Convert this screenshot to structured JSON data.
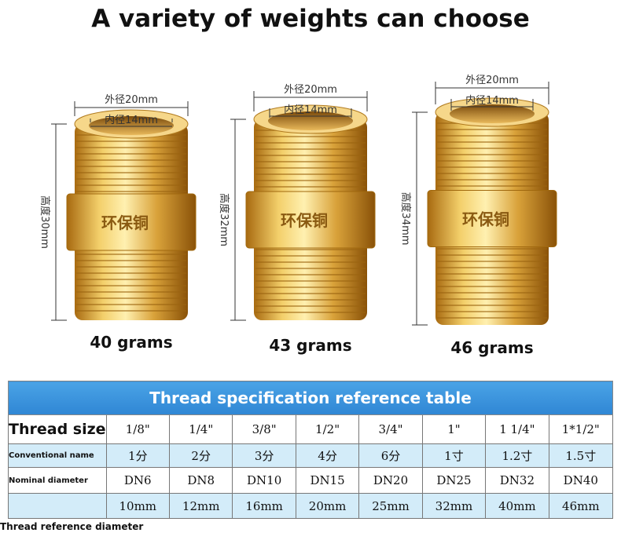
{
  "header": {
    "title": "A variety of weights can choose"
  },
  "products": [
    {
      "outer": "外径20mm",
      "inner": "内径14mm",
      "height": "高度30mm",
      "stamp": "环保铜",
      "weight": "40 grams"
    },
    {
      "outer": "外径20mm",
      "inner": "内径14mm",
      "height": "高度32mm",
      "stamp": "环保铜",
      "weight": "43 grams"
    },
    {
      "outer": "外径20mm",
      "inner": "内径14mm",
      "height": "高度34mm",
      "stamp": "环保铜",
      "weight": "46 grams"
    }
  ],
  "table": {
    "title": "Thread specification reference table",
    "rows": [
      {
        "label": "Thread size",
        "cells": [
          "1/8\"",
          "1/4\"",
          "3/8\"",
          "1/2\"",
          "3/4\"",
          "1\"",
          "1 1/4\"",
          "1*1/2\""
        ]
      },
      {
        "label": "Conventional name",
        "cells": [
          "1分",
          "2分",
          "3分",
          "4分",
          "6分",
          "1寸",
          "1.2寸",
          "1.5寸"
        ]
      },
      {
        "label": "Nominal diameter",
        "cells": [
          "DN6",
          "DN8",
          "DN10",
          "DN15",
          "DN20",
          "DN25",
          "DN32",
          "DN40"
        ]
      },
      {
        "cells": [
          "10mm",
          "12mm",
          "16mm",
          "20mm",
          "25mm",
          "32mm",
          "40mm",
          "46mm"
        ]
      }
    ],
    "footnote": "Thread reference diameter"
  }
}
